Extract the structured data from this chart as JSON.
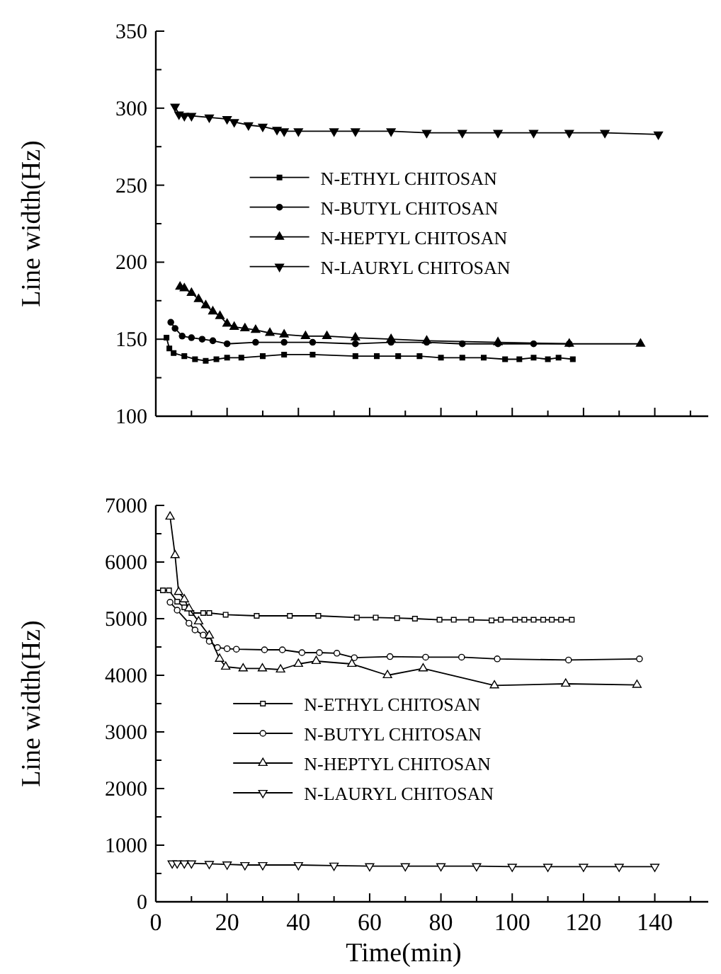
{
  "chart_data": [
    {
      "type": "line",
      "ylabel": "Line width(Hz)",
      "xlim": [
        0,
        155
      ],
      "ylim": [
        100,
        350
      ],
      "xticks": [
        0,
        {
          "value": 10,
          "label": null
        },
        20,
        {
          "value": 30,
          "label": null
        },
        40,
        {
          "value": 50,
          "label": null
        },
        60,
        {
          "value": 70,
          "label": null
        },
        80,
        {
          "value": 90,
          "label": null
        },
        100,
        {
          "value": 110,
          "label": null
        },
        120,
        {
          "value": 130,
          "label": null
        },
        140,
        {
          "value": 150,
          "label": null
        }
      ],
      "yticks": [
        100,
        {
          "value": 125,
          "label": null
        },
        150,
        {
          "value": 175,
          "label": null
        },
        200,
        {
          "value": 225,
          "label": null
        },
        250,
        {
          "value": 275,
          "label": null
        },
        300,
        {
          "value": 325,
          "label": null
        },
        350
      ],
      "tick_labels": "y",
      "grid": false,
      "legend": "center",
      "series": [
        {
          "name": "N-ETHYL CHITOSAN",
          "color": "#000000",
          "marker": "square",
          "x": [
            3,
            3.8,
            5,
            8,
            11,
            14,
            17,
            20,
            24,
            30,
            36,
            44,
            56,
            62,
            68,
            74,
            80,
            86,
            92,
            98,
            102,
            106,
            110,
            113,
            117
          ],
          "values": [
            151,
            144,
            141,
            139,
            137,
            136,
            137,
            138,
            138,
            139,
            140,
            140,
            139,
            139,
            139,
            139,
            138,
            138,
            138,
            137,
            137,
            138,
            137,
            138,
            137
          ]
        },
        {
          "name": "N-BUTYL CHITOSAN",
          "color": "#000000",
          "marker": "circle",
          "x": [
            4.2,
            5.4,
            7.4,
            10,
            13,
            16,
            20,
            28,
            36,
            44,
            56,
            66,
            76,
            86,
            96,
            106,
            116
          ],
          "values": [
            161,
            157,
            152,
            151,
            150,
            149,
            147,
            148,
            148,
            148,
            147,
            148,
            148,
            147,
            147,
            147,
            147
          ]
        },
        {
          "name": "N-HEPTYL CHITOSAN",
          "color": "#000000",
          "marker": "triangle",
          "x": [
            6.8,
            8,
            10,
            12,
            14,
            16,
            18,
            20,
            22,
            25,
            28,
            32,
            36,
            42,
            48,
            56,
            66,
            76,
            96,
            116,
            136
          ],
          "values": [
            184,
            183,
            180,
            176,
            172,
            168,
            165,
            160,
            158,
            157,
            156,
            154,
            153,
            152,
            152,
            151,
            150,
            149,
            148,
            147,
            147
          ]
        },
        {
          "name": "N-LAURYL CHITOSAN",
          "color": "#000000",
          "marker": "triangle-down",
          "x": [
            5.4,
            6.5,
            8,
            10,
            15,
            20,
            22,
            26,
            30,
            34,
            36,
            40,
            50,
            56,
            66,
            76,
            86,
            96,
            106,
            116,
            126,
            141
          ],
          "values": [
            301,
            296,
            295,
            295,
            294,
            293,
            291,
            289,
            288,
            286,
            285,
            285,
            285,
            285,
            285,
            284,
            284,
            284,
            284,
            284,
            284,
            283
          ]
        }
      ]
    },
    {
      "type": "line",
      "xlabel": "Time(min)",
      "ylabel": "Line width(Hz)",
      "xlim": [
        0,
        155
      ],
      "ylim": [
        0,
        7000
      ],
      "xticks": [
        0,
        {
          "value": 10,
          "label": null
        },
        20,
        {
          "value": 30,
          "label": null
        },
        40,
        {
          "value": 50,
          "label": null
        },
        60,
        {
          "value": 70,
          "label": null
        },
        80,
        {
          "value": 90,
          "label": null
        },
        100,
        {
          "value": 110,
          "label": null
        },
        120,
        {
          "value": 130,
          "label": null
        },
        140,
        {
          "value": 150,
          "label": null
        }
      ],
      "yticks": [
        0,
        {
          "value": 500,
          "label": null
        },
        1000,
        {
          "value": 1500,
          "label": null
        },
        2000,
        {
          "value": 2500,
          "label": null
        },
        3000,
        {
          "value": 3500,
          "label": null
        },
        4000,
        {
          "value": 4500,
          "label": null
        },
        5000,
        {
          "value": 5500,
          "label": null
        },
        6000,
        {
          "value": 6500,
          "label": null
        },
        7000
      ],
      "grid": false,
      "legend": "bottom",
      "series": [
        {
          "name": "N-ETHYL CHITOSAN",
          "color": "#000000",
          "marker": "square",
          "x": [
            2,
            3.7,
            6,
            8,
            10,
            13.3,
            15,
            19.6,
            28.3,
            37.6,
            45.6,
            56.4,
            61.7,
            67.7,
            72.7,
            79.6,
            83.6,
            88.5,
            94.2,
            96.8,
            100.8,
            103.4,
            106,
            108.7,
            111.1,
            113.7,
            116.7
          ],
          "values": [
            5500,
            5500,
            5300,
            5200,
            5100,
            5100,
            5100,
            5070,
            5050,
            5050,
            5050,
            5020,
            5020,
            5010,
            5000,
            4980,
            4980,
            4980,
            4970,
            4980,
            4980,
            4980,
            4980,
            4980,
            4980,
            4980,
            4980
          ]
        },
        {
          "name": "N-BUTYL CHITOSAN",
          "color": "#000000",
          "marker": "circle",
          "x": [
            4,
            6,
            9.3,
            11,
            13.3,
            15,
            17.3,
            20,
            22.6,
            30.5,
            35.5,
            41,
            45.9,
            50.8,
            55.7,
            65.7,
            75.7,
            85.8,
            95.8,
            115.8,
            135.7
          ],
          "values": [
            5290,
            5150,
            4920,
            4800,
            4710,
            4600,
            4490,
            4470,
            4460,
            4450,
            4450,
            4400,
            4400,
            4390,
            4310,
            4330,
            4320,
            4320,
            4290,
            4270,
            4290
          ]
        },
        {
          "name": "N-HEPTYL CHITOSAN",
          "color": "#000000",
          "marker": "triangle",
          "x": [
            4,
            5.4,
            6.4,
            8,
            9.3,
            12,
            15,
            17.9,
            19.6,
            24.5,
            29.9,
            35,
            40,
            45,
            55,
            65,
            75,
            95,
            115,
            135
          ],
          "values": [
            6800,
            6120,
            5470,
            5340,
            5180,
            4950,
            4700,
            4290,
            4150,
            4120,
            4120,
            4100,
            4200,
            4250,
            4200,
            4000,
            4120,
            3820,
            3850,
            3830
          ]
        },
        {
          "name": "N-LAURYL CHITOSAN",
          "color": "#000000",
          "marker": "triangle-down",
          "x": [
            4.6,
            6,
            8,
            10,
            15,
            20,
            25,
            30,
            40,
            50,
            60,
            70,
            80,
            90,
            100,
            110,
            120,
            130,
            140
          ],
          "values": [
            680,
            680,
            680,
            680,
            670,
            660,
            650,
            650,
            650,
            640,
            630,
            630,
            630,
            630,
            620,
            620,
            620,
            620,
            620
          ]
        }
      ]
    }
  ]
}
